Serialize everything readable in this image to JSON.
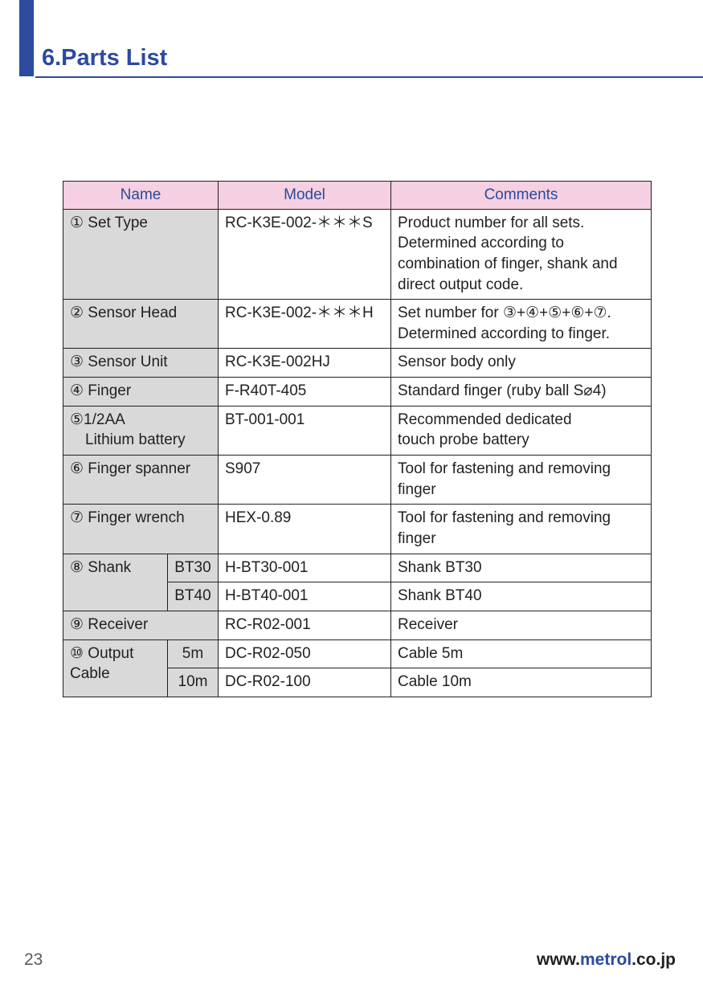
{
  "heading": "6.Parts List",
  "columns": {
    "name": "Name",
    "model": "Model",
    "comments": "Comments"
  },
  "rows": {
    "r1": {
      "name": "① Set Type",
      "model": "RC-K3E-002-＊＊＊S",
      "comments": "Product number for all sets. Determined according to combination of finger, shank and direct output code."
    },
    "r2": {
      "name": "② Sensor Head",
      "model": "RC-K3E-002-＊＊＊H",
      "comments": "Set number for ③+④+⑤+⑥+⑦.\nDetermined according to finger."
    },
    "r3": {
      "name": "③ Sensor Unit",
      "model": "RC-K3E-002HJ",
      "comments": "Sensor body only"
    },
    "r4": {
      "name": "④ Finger",
      "model": "F-R40T-405",
      "comments": "Standard finger (ruby ball S⌀4)"
    },
    "r5": {
      "name": "⑤1/2AA\n　Lithium battery",
      "model": "BT-001-001",
      "comments": "Recommended dedicated\ntouch probe battery"
    },
    "r6": {
      "name": "⑥ Finger spanner",
      "model": "S907",
      "comments": "Tool for fastening and removing\nfinger"
    },
    "r7": {
      "name": "⑦ Finger wrench",
      "model": "HEX-0.89",
      "comments": "Tool for fastening and removing\nfinger"
    },
    "r8": {
      "name": "⑧ Shank",
      "a": {
        "sub": "BT30",
        "model": "H-BT30-001",
        "comments": "Shank  BT30"
      },
      "b": {
        "sub": "BT40",
        "model": "H-BT40-001",
        "comments": "Shank  BT40"
      }
    },
    "r9": {
      "name": "⑨ Receiver",
      "model": "RC-R02-001",
      "comments": "Receiver"
    },
    "r10": {
      "name": "⑩ Output Cable",
      "a": {
        "sub": "5m",
        "model": "DC-R02-050",
        "comments": "Cable 5m"
      },
      "b": {
        "sub": "10m",
        "model": "DC-R02-100",
        "comments": "Cable 10m"
      }
    }
  },
  "page_number": "23",
  "url": {
    "pre": "www.",
    "mid": "metrol",
    "suf": ".co.jp"
  }
}
